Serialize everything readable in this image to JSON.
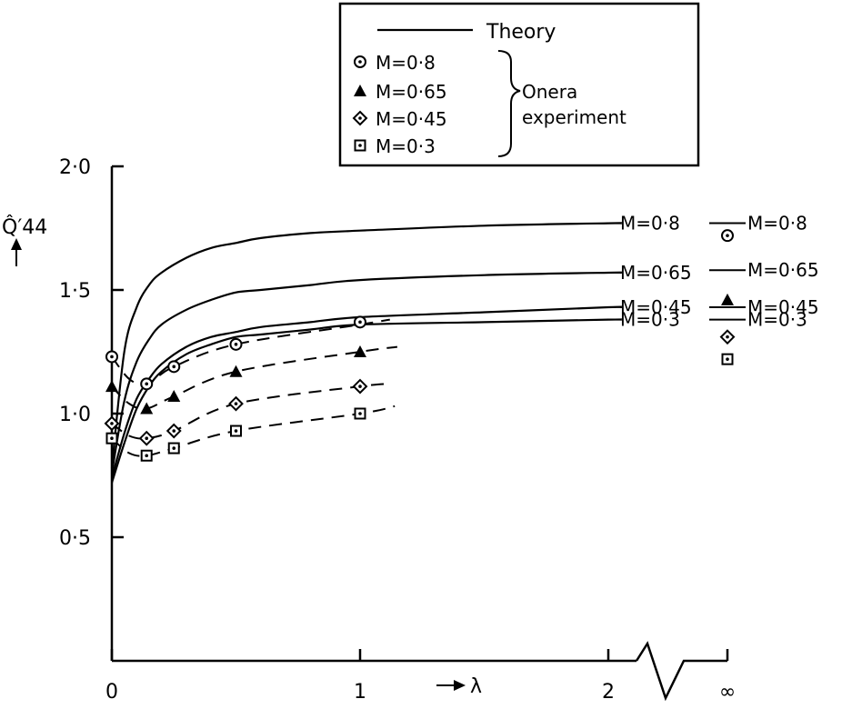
{
  "chart_data": {
    "type": "line",
    "title": "",
    "xlabel": "λ",
    "ylabel": "Q̂′44",
    "xlim": [
      0,
      2.5
    ],
    "ylim": [
      0,
      2.0
    ],
    "x_ticks": [
      {
        "value": 0,
        "label": "0"
      },
      {
        "value": 1,
        "label": "1"
      },
      {
        "value": 2,
        "label": "2"
      },
      {
        "value": "inf",
        "label": "∞"
      }
    ],
    "y_ticks": [
      {
        "value": 0.5,
        "label": "0·5"
      },
      {
        "value": 1.0,
        "label": "1·0"
      },
      {
        "value": 1.5,
        "label": "1·5"
      },
      {
        "value": 2.0,
        "label": "2·0"
      }
    ],
    "axis_break": "between 2 and ∞",
    "legend": {
      "placement": "top-right",
      "theory_label": "Theory",
      "group_label_line1": "Onera",
      "group_label_line2": "experiment",
      "entries": [
        {
          "marker": "dotted-circle",
          "label": "M=0·8"
        },
        {
          "marker": "filled-triangle",
          "label": "M=0·65"
        },
        {
          "marker": "dotted-diamond",
          "label": "M=0·45"
        },
        {
          "marker": "dotted-square",
          "label": "M=0·3"
        }
      ]
    },
    "theory_series": [
      {
        "name": "M=0·8",
        "label": "M=0·8",
        "inf_label": "M=0·8",
        "inf_value": 1.77,
        "x": [
          0,
          0.05,
          0.1,
          0.15,
          0.2,
          0.3,
          0.4,
          0.5,
          0.6,
          0.8,
          1.0,
          1.5,
          2.0
        ],
        "y": [
          0.78,
          1.25,
          1.43,
          1.52,
          1.57,
          1.63,
          1.67,
          1.69,
          1.71,
          1.73,
          1.74,
          1.76,
          1.77
        ]
      },
      {
        "name": "M=0·65",
        "label": "M=0·65",
        "inf_label": "M=0·65",
        "inf_value": 1.58,
        "x": [
          0,
          0.05,
          0.1,
          0.15,
          0.2,
          0.3,
          0.4,
          0.5,
          0.6,
          0.8,
          1.0,
          1.5,
          2.0
        ],
        "y": [
          0.76,
          1.05,
          1.21,
          1.3,
          1.36,
          1.42,
          1.46,
          1.49,
          1.5,
          1.52,
          1.54,
          1.56,
          1.57
        ]
      },
      {
        "name": "M=0·45",
        "label": "M=0·45",
        "inf_label": "M=0·45",
        "inf_value": 1.43,
        "x": [
          0,
          0.05,
          0.1,
          0.15,
          0.2,
          0.3,
          0.4,
          0.5,
          0.6,
          0.8,
          1.0,
          1.5,
          2.0
        ],
        "y": [
          0.74,
          0.92,
          1.06,
          1.14,
          1.2,
          1.27,
          1.31,
          1.33,
          1.35,
          1.37,
          1.39,
          1.41,
          1.43
        ]
      },
      {
        "name": "M=0·3",
        "label": "M=0·3",
        "inf_label": "M=0·3",
        "inf_value": 1.38,
        "x": [
          0,
          0.05,
          0.1,
          0.15,
          0.2,
          0.3,
          0.4,
          0.5,
          0.6,
          0.8,
          1.0,
          1.5,
          2.0
        ],
        "y": [
          0.72,
          0.88,
          1.02,
          1.11,
          1.17,
          1.24,
          1.28,
          1.31,
          1.32,
          1.34,
          1.36,
          1.37,
          1.38
        ]
      }
    ],
    "experiment_series": [
      {
        "name": "M=0·8",
        "marker": "dotted-circle",
        "x": [
          0,
          0.14,
          0.25,
          0.5,
          1.0
        ],
        "y": [
          1.23,
          1.12,
          1.19,
          1.28,
          1.37
        ],
        "curve_x": [
          0,
          0.07,
          0.14,
          0.25,
          0.5,
          1.0,
          1.12
        ],
        "curve_y": [
          1.23,
          1.14,
          1.12,
          1.19,
          1.28,
          1.36,
          1.38
        ],
        "inf_value": 1.72
      },
      {
        "name": "M=0·65",
        "marker": "filled-triangle",
        "x": [
          0,
          0.14,
          0.25,
          0.5,
          1.0
        ],
        "y": [
          1.11,
          1.02,
          1.07,
          1.17,
          1.25
        ],
        "curve_x": [
          0,
          0.07,
          0.14,
          0.25,
          0.5,
          1.0,
          1.15
        ],
        "curve_y": [
          1.11,
          1.04,
          1.02,
          1.07,
          1.17,
          1.25,
          1.27
        ],
        "inf_value": 1.46
      },
      {
        "name": "M=0·45",
        "marker": "dotted-diamond",
        "x": [
          0,
          0.14,
          0.25,
          0.5,
          1.0
        ],
        "y": [
          0.96,
          0.9,
          0.93,
          1.04,
          1.11
        ],
        "curve_x": [
          0,
          0.07,
          0.14,
          0.25,
          0.5,
          1.0,
          1.12
        ],
        "curve_y": [
          0.96,
          0.91,
          0.9,
          0.93,
          1.04,
          1.11,
          1.12
        ],
        "inf_value": 1.31
      },
      {
        "name": "M=0·3",
        "marker": "dotted-square",
        "x": [
          0,
          0.14,
          0.25,
          0.5,
          1.0
        ],
        "y": [
          0.9,
          0.83,
          0.86,
          0.93,
          1.0
        ],
        "curve_x": [
          0,
          0.07,
          0.14,
          0.25,
          0.5,
          1.0,
          1.14
        ],
        "curve_y": [
          0.9,
          0.84,
          0.83,
          0.86,
          0.93,
          1.0,
          1.03
        ],
        "inf_value": 1.22
      }
    ]
  }
}
